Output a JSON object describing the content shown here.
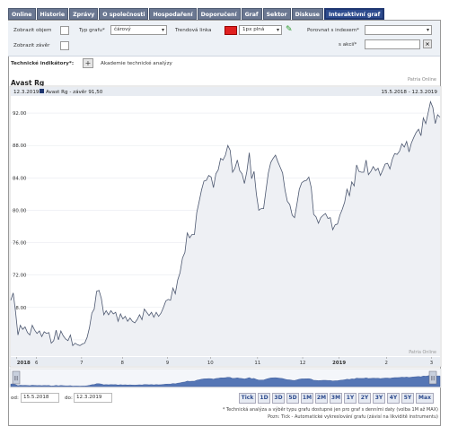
{
  "tabs": [
    {
      "label": "Online"
    },
    {
      "label": "Historie"
    },
    {
      "label": "Zprávy"
    },
    {
      "label": "O společnosti"
    },
    {
      "label": "Hospodaření"
    },
    {
      "label": "Doporučení"
    },
    {
      "label": "Graf"
    },
    {
      "label": "Sektor"
    },
    {
      "label": "Diskuse"
    },
    {
      "label": "Interaktivní graf"
    }
  ],
  "controls": {
    "show_volume": "Zobrazit objem",
    "show_close": "Zobrazit závěr",
    "chart_type_label": "Typ grafu*",
    "chart_type_value": "čárový",
    "trend_line_label": "Trendová linka",
    "line_style_value": "1px plná",
    "compare_index_label": "Porovnat s indexem*",
    "compare_index_value": "",
    "compare_stock_label": "s akcií*",
    "compare_stock_value": "",
    "clear_label": "×",
    "trend_color": "#e02020"
  },
  "technical": {
    "label": "Technické indikátory*:",
    "add_label": "+",
    "academy": "Akademie technické analýzy"
  },
  "chart_header": {
    "stock_name": "Avast Rg",
    "source_top": "Patria Online",
    "legend_date": "12.3.2019",
    "legend_series": "Avast Rg - závěr 91,50",
    "range": "15.5.2018 - 12.3.2019",
    "source_bottom": "Patria Online"
  },
  "chart_data": {
    "type": "line",
    "title": "Avast Rg",
    "series": [
      {
        "name": "Avast Rg - závěr 91,50",
        "color": "#4d5870"
      }
    ],
    "ylim": [
      62,
      94
    ],
    "yticks": [
      "64.00",
      "68.00",
      "72.00",
      "76.00",
      "80.00",
      "84.00",
      "88.00",
      "92.00"
    ],
    "xticks": [
      "2018",
      "6",
      "7",
      "8",
      "9",
      "10",
      "11",
      "12",
      "2019",
      "2",
      "3"
    ],
    "values": [
      68.9,
      69.8,
      67.5,
      64.6,
      65.8,
      65.3,
      65.6,
      64.9,
      64.6,
      65.8,
      65.2,
      64.8,
      65.1,
      64.4,
      65.0,
      64.8,
      64.9,
      63.6,
      63.9,
      65.2,
      64.0,
      65.1,
      64.5,
      64.1,
      63.9,
      64.6,
      63.3,
      63.6,
      63.4,
      63.3,
      63.5,
      63.6,
      64.3,
      65.5,
      67.3,
      67.8,
      70.0,
      70.1,
      69.1,
      67.1,
      67.6,
      67.1,
      67.6,
      67.2,
      67.4,
      66.3,
      67.2,
      66.6,
      66.9,
      66.3,
      66.7,
      66.3,
      66.1,
      66.5,
      67.1,
      66.5,
      67.8,
      67.4,
      67.0,
      67.4,
      66.8,
      67.4,
      66.9,
      67.3,
      68.0,
      68.8,
      69.0,
      68.9,
      70.4,
      69.7,
      71.4,
      72.3,
      74.1,
      74.8,
      77.2,
      76.6,
      77.0,
      77.0,
      79.7,
      81.1,
      82.5,
      83.6,
      83.7,
      84.3,
      84.1,
      82.8,
      84.5,
      85.0,
      86.4,
      86.2,
      86.8,
      88.0,
      87.4,
      84.7,
      85.2,
      86.2,
      84.9,
      84.5,
      83.3,
      84.8,
      87.1,
      83.9,
      84.8,
      82.0,
      80.0,
      80.2,
      80.2,
      82.4,
      84.6,
      85.9,
      86.4,
      86.8,
      86.0,
      85.3,
      84.6,
      82.5,
      81.1,
      80.7,
      79.4,
      79.1,
      80.8,
      82.6,
      83.4,
      83.6,
      83.7,
      84.1,
      82.8,
      79.5,
      79.2,
      78.4,
      79.1,
      79.4,
      79.6,
      79.0,
      79.1,
      77.6,
      78.2,
      78.3,
      79.4,
      80.1,
      81.0,
      82.6,
      81.8,
      83.5,
      83.0,
      85.6,
      84.8,
      84.7,
      84.7,
      86.2,
      84.4,
      84.8,
      85.4,
      84.9,
      85.2,
      84.3,
      85.0,
      85.7,
      85.8,
      85.1,
      86.3,
      87.0,
      86.9,
      87.3,
      88.2,
      87.8,
      88.5,
      87.2,
      88.3,
      89.0,
      89.6,
      90.0,
      89.2,
      91.4,
      90.7,
      92.0,
      93.4,
      92.7,
      90.7,
      91.8,
      91.5
    ]
  },
  "date_range": {
    "from_label": "od:",
    "from_value": "15.5.2018",
    "to_label": "do:",
    "to_value": "12.3.2019"
  },
  "range_buttons": [
    "Tick",
    "1D",
    "3D",
    "5D",
    "1M",
    "2M",
    "3M",
    "1Y",
    "2Y",
    "3Y",
    "4Y",
    "5Y",
    "Max"
  ],
  "notes": {
    "line1": "* Technická analýza a výběr typu grafu dostupné jen pro graf s denními daty (volba 1M až MAX)",
    "line2": "Pozn: Tick - Automatické vykreslování grafu (závisí na likviditě instrumentu)"
  }
}
